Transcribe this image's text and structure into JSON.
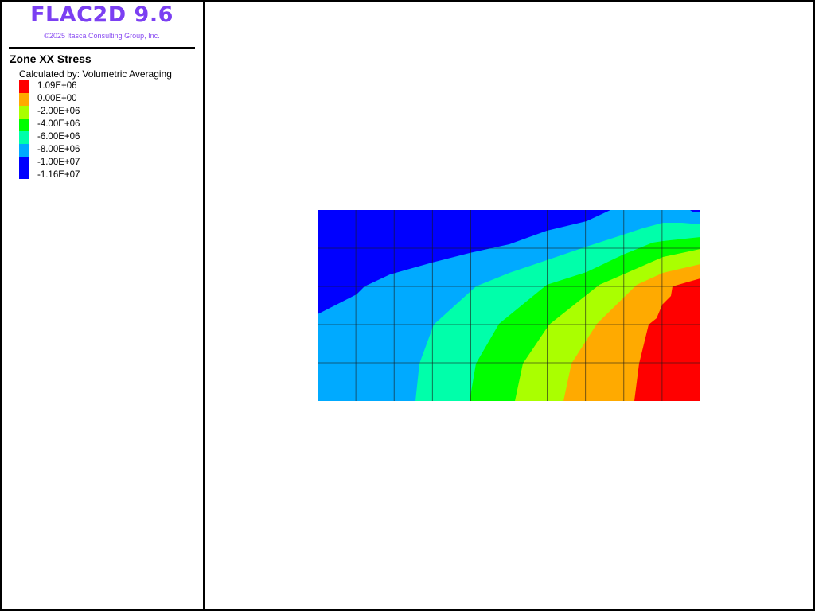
{
  "header": {
    "app_title": "FLAC2D 9.6",
    "copyright": "©2025 Itasca Consulting Group, Inc."
  },
  "legend": {
    "title": "Zone XX Stress",
    "calculated_by": "Calculated by: Volumetric Averaging",
    "items": [
      {
        "label": "1.09E+06",
        "color": "#ff0000"
      },
      {
        "label": "0.00E+00",
        "color": "#ffaa00"
      },
      {
        "label": "-2.00E+06",
        "color": "#aaff00"
      },
      {
        "label": "-4.00E+06",
        "color": "#00ff00"
      },
      {
        "label": "-6.00E+06",
        "color": "#00ffaa"
      },
      {
        "label": "-8.00E+06",
        "color": "#00aaff"
      },
      {
        "label": "-1.00E+07",
        "color": "#0000ff"
      },
      {
        "label": "-1.16E+07",
        "color": "#0000ff"
      }
    ]
  },
  "model": {
    "grid_columns": 10,
    "grid_rows": 5,
    "band_colors": [
      "#0000ff",
      "#00aaff",
      "#00ffaa",
      "#00ff00",
      "#aaff00",
      "#ffaa00",
      "#ff0000"
    ],
    "grid_line_color": "#1a1a1a"
  }
}
